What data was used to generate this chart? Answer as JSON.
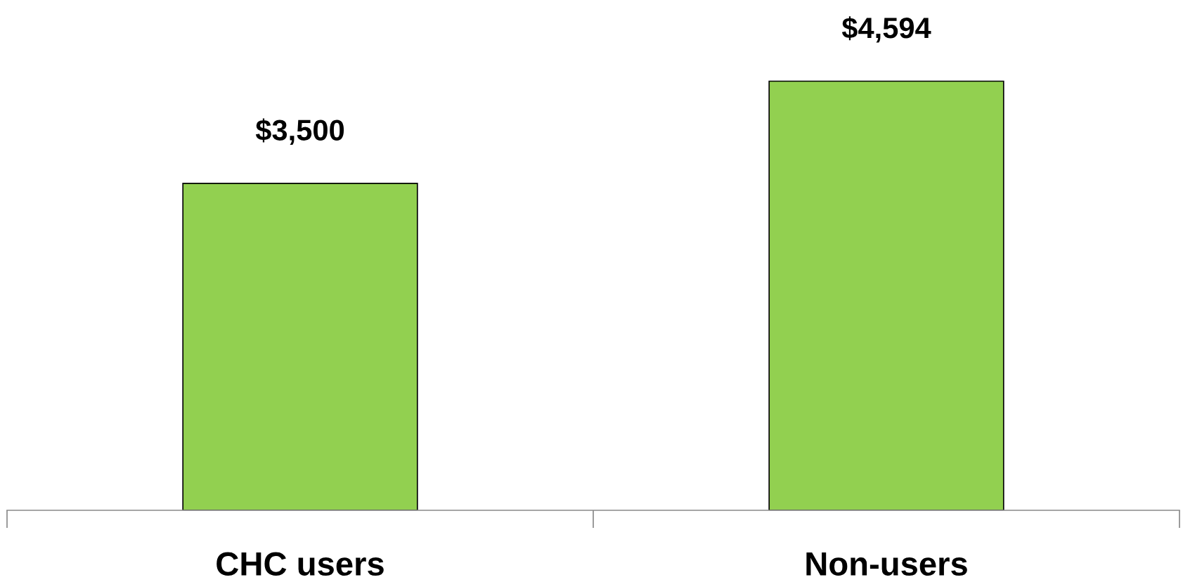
{
  "chart_data": {
    "type": "bar",
    "categories": [
      "CHC users",
      "Non-users"
    ],
    "values": [
      3500,
      4594
    ],
    "color": "#92d050",
    "value_labels": [
      "$3,500",
      "$4,594"
    ],
    "tick_labels": "x",
    "grid": false,
    "legend": false
  }
}
